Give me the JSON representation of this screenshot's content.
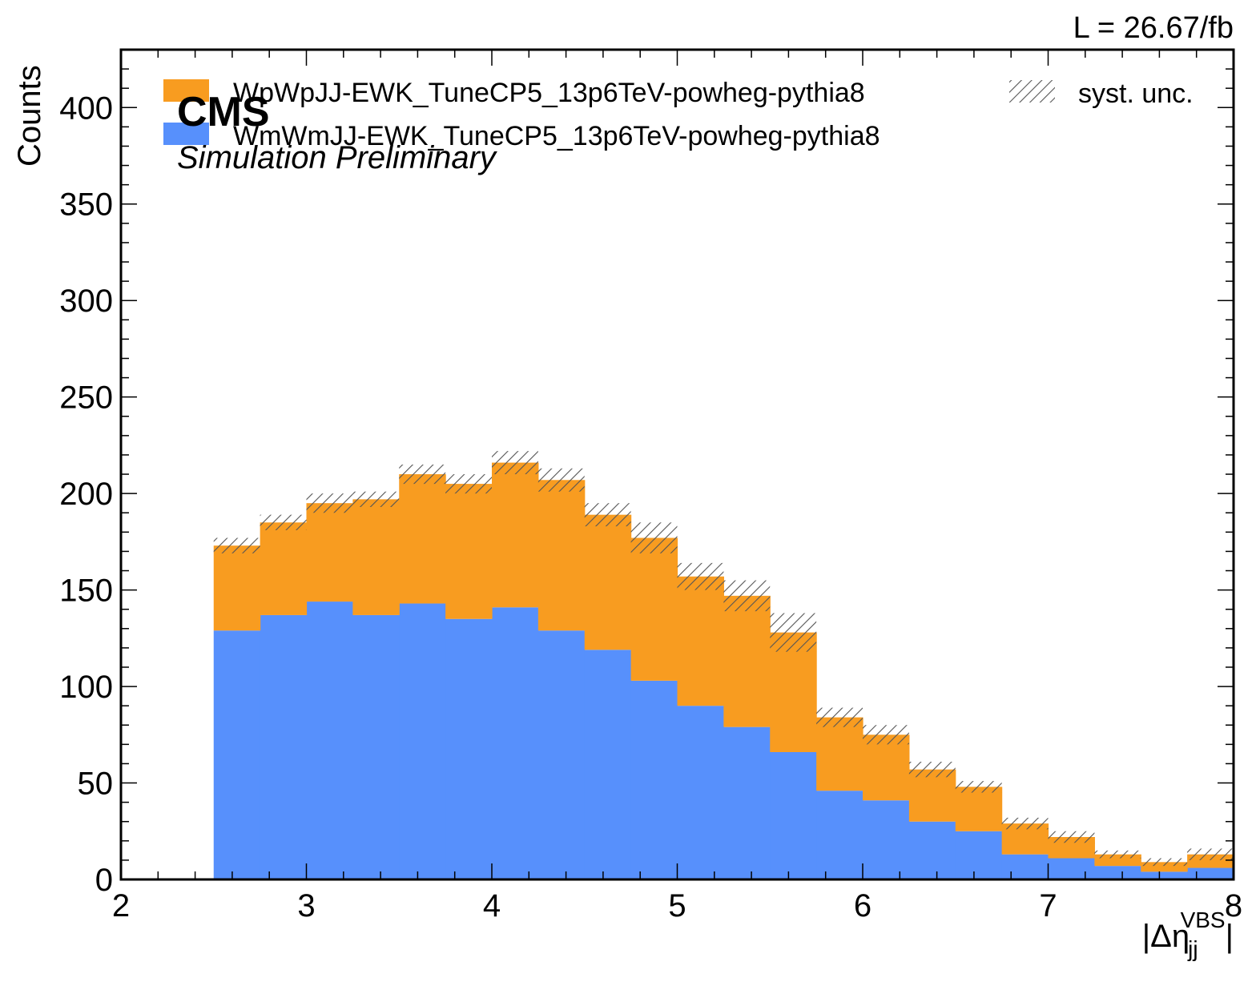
{
  "chart_data": {
    "type": "bar",
    "stacked": true,
    "histogram": true,
    "experiment_label": "CMS",
    "subtitle": "Simulation Preliminary",
    "lumi_label": "L = 26.67/fb",
    "xlabel_base": "|Δη",
    "xlabel_sub": "jj",
    "xlabel_sup": "VBS",
    "xlabel_end": "|",
    "ylabel": "Counts",
    "xlim": [
      2,
      8
    ],
    "ylim": [
      0,
      430
    ],
    "x_ticks": [
      2,
      3,
      4,
      5,
      6,
      7,
      8
    ],
    "y_ticks": [
      0,
      50,
      100,
      150,
      200,
      250,
      300,
      350,
      400
    ],
    "legend_position": "top",
    "bin_edges": [
      2.5,
      2.75,
      3.0,
      3.25,
      3.5,
      3.75,
      4.0,
      4.25,
      4.5,
      4.75,
      5.0,
      5.25,
      5.5,
      5.75,
      6.0,
      6.25,
      6.5,
      6.75,
      7.0,
      7.25,
      7.5,
      7.75,
      8.0
    ],
    "series": [
      {
        "name": "WmWmJJ-EWK_TuneCP5_13p6TeV-powheg-pythia8",
        "color": "#5790fc",
        "values": [
          129,
          137,
          144,
          137,
          143,
          135,
          141,
          129,
          119,
          103,
          90,
          79,
          66,
          46,
          41,
          30,
          25,
          13,
          11,
          7,
          4,
          6
        ]
      },
      {
        "name": "WpWpJJ-EWK_TuneCP5_13p6TeV-powheg-pythia8",
        "color": "#f89c20",
        "values": [
          44,
          48,
          51,
          60,
          67,
          70,
          75,
          78,
          70,
          74,
          67,
          68,
          62,
          38,
          34,
          27,
          23,
          16,
          11,
          6,
          5,
          7
        ]
      }
    ],
    "syst_unc": {
      "name": "syst. unc.",
      "half_width": [
        4,
        4,
        5,
        4,
        5,
        5,
        6,
        6,
        6,
        8,
        7,
        8,
        10,
        5,
        5,
        4,
        3,
        3,
        3,
        2,
        2,
        3
      ]
    }
  }
}
